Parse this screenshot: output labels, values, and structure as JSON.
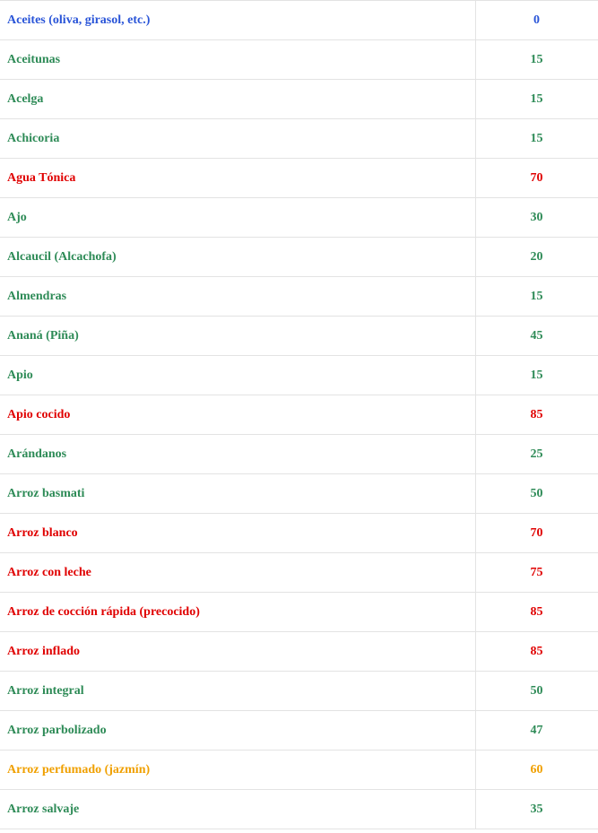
{
  "colors": {
    "low": "#2e8b57",
    "high": "#e00000",
    "medium": "#f0a000",
    "zero": "#2a55d8",
    "border": "#e3e3e3"
  },
  "rows": [
    {
      "name": "Aceites (oliva, girasol, etc.)",
      "value": "0",
      "level": "zero"
    },
    {
      "name": "Aceitunas",
      "value": "15",
      "level": "low"
    },
    {
      "name": "Acelga",
      "value": "15",
      "level": "low"
    },
    {
      "name": "Achicoria",
      "value": "15",
      "level": "low"
    },
    {
      "name": "Agua Tónica",
      "value": "70",
      "level": "high"
    },
    {
      "name": "Ajo",
      "value": "30",
      "level": "low"
    },
    {
      "name": "Alcaucil (Alcachofa)",
      "value": "20",
      "level": "low"
    },
    {
      "name": "Almendras",
      "value": "15",
      "level": "low"
    },
    {
      "name": "Ananá (Piña)",
      "value": "45",
      "level": "low"
    },
    {
      "name": "Apio",
      "value": "15",
      "level": "low"
    },
    {
      "name": "Apio cocido",
      "value": "85",
      "level": "high"
    },
    {
      "name": "Arándanos",
      "value": "25",
      "level": "low"
    },
    {
      "name": "Arroz basmati",
      "value": "50",
      "level": "low"
    },
    {
      "name": "Arroz blanco",
      "value": "70",
      "level": "high"
    },
    {
      "name": "Arroz con leche",
      "value": "75",
      "level": "high"
    },
    {
      "name": "Arroz de cocción rápida (precocido)",
      "value": "85",
      "level": "high"
    },
    {
      "name": "Arroz inflado",
      "value": "85",
      "level": "high"
    },
    {
      "name": "Arroz integral",
      "value": "50",
      "level": "low"
    },
    {
      "name": "Arroz parbolizado",
      "value": "47",
      "level": "low"
    },
    {
      "name": "Arroz perfumado (jazmín)",
      "value": "60",
      "level": "medium"
    },
    {
      "name": "Arroz salvaje",
      "value": "35",
      "level": "low"
    }
  ]
}
